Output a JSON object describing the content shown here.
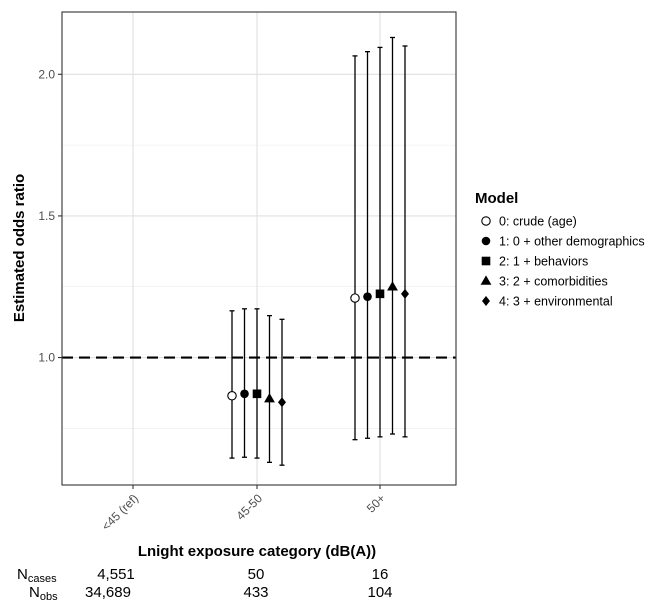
{
  "chart_data": {
    "type": "scatter",
    "subtype": "point-with-error-bars",
    "xlabel": "Lnight exposure category (dB(A))",
    "ylabel": "Estimated odds ratio",
    "categories": [
      "<45 (ref)",
      "45-50",
      "50+"
    ],
    "ylim": [
      0.55,
      2.22
    ],
    "yticks": [
      1.0,
      1.5,
      2.0
    ],
    "ytick_labels": [
      "1.0",
      "1.5",
      "2.0"
    ],
    "reference_line": 1.0,
    "grid": true,
    "legend_title": "Model",
    "legend_position": "right",
    "series": [
      {
        "name": "0: crude (age)",
        "marker": "open-circle",
        "points": [
          {
            "category": "45-50",
            "or": 0.865,
            "lower": 0.645,
            "upper": 1.165
          },
          {
            "category": "50+",
            "or": 1.21,
            "lower": 0.71,
            "upper": 2.065
          }
        ]
      },
      {
        "name": "1: 0 + other demographics",
        "marker": "circle",
        "points": [
          {
            "category": "45-50",
            "or": 0.872,
            "lower": 0.648,
            "upper": 1.172
          },
          {
            "category": "50+",
            "or": 1.215,
            "lower": 0.715,
            "upper": 2.08
          }
        ]
      },
      {
        "name": "2: 1 + behaviors",
        "marker": "square",
        "points": [
          {
            "category": "45-50",
            "or": 0.872,
            "lower": 0.645,
            "upper": 1.172
          },
          {
            "category": "50+",
            "or": 1.225,
            "lower": 0.72,
            "upper": 2.095
          }
        ]
      },
      {
        "name": "3: 2 + comorbidities",
        "marker": "triangle",
        "points": [
          {
            "category": "45-50",
            "or": 0.855,
            "lower": 0.63,
            "upper": 1.148
          },
          {
            "category": "50+",
            "or": 1.25,
            "lower": 0.73,
            "upper": 2.13
          }
        ]
      },
      {
        "name": "4: 3 + environmental",
        "marker": "diamond",
        "points": [
          {
            "category": "45-50",
            "or": 0.842,
            "lower": 0.62,
            "upper": 1.135
          },
          {
            "category": "50+",
            "or": 1.225,
            "lower": 0.72,
            "upper": 2.1
          }
        ]
      }
    ]
  },
  "counts": {
    "cases_label": "N",
    "cases_sub": "cases",
    "obs_label": "N",
    "obs_sub": "obs",
    "cases": [
      "4,551",
      "50",
      "16"
    ],
    "obs": [
      "34,689",
      "433",
      "104"
    ]
  }
}
